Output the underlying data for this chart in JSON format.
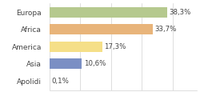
{
  "categories": [
    "Europa",
    "Africa",
    "America",
    "Asia",
    "Apolidi"
  ],
  "values": [
    38.3,
    33.7,
    17.3,
    10.6,
    0.1
  ],
  "labels": [
    "38,3%",
    "33,7%",
    "17,3%",
    "10,6%",
    "0,1%"
  ],
  "bar_colors": [
    "#b5c98e",
    "#e8b47a",
    "#f5df88",
    "#7b8fc4",
    "#e0dede"
  ],
  "background_color": "#ffffff",
  "xlim": [
    0,
    48
  ],
  "label_fontsize": 6.2,
  "tick_fontsize": 6.5,
  "grid_color": "#d0d0d0",
  "text_color": "#444444"
}
